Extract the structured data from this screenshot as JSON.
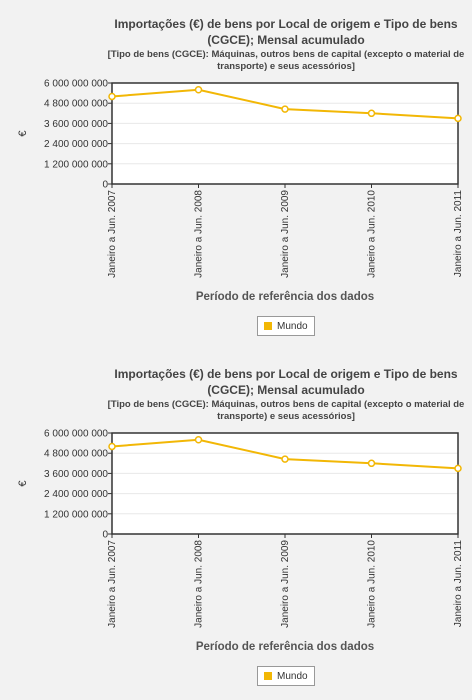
{
  "colors": {
    "series": "#f2b705",
    "plot_border": "#333333",
    "grid": "#e8e8e8"
  },
  "chart_data": [
    {
      "type": "line",
      "title": "Importações (€) de bens por Local de origem e Tipo de bens (CGCE); Mensal acumulado",
      "subtitle": "[Tipo de bens (CGCE): Máquinas, outros bens de capital (excepto o material de transporte) e seus acessórios]",
      "xlabel": "Período de referência dos dados",
      "ylabel": "€",
      "ylim": [
        0,
        6000000000
      ],
      "yticks": [
        0,
        1200000000,
        2400000000,
        3600000000,
        4800000000,
        6000000000
      ],
      "ytick_labels": [
        "0",
        "1 200 000 000",
        "2 400 000 000",
        "3 600 000 000",
        "4 800 000 000",
        "6 000 000 000"
      ],
      "categories": [
        "Janeiro a Jun. 2007",
        "Janeiro a Jun. 2008",
        "Janeiro a Jun. 2009",
        "Janeiro a Jun. 2010",
        "Janeiro a Jun. 2011"
      ],
      "series": [
        {
          "name": "Mundo",
          "values": [
            5200000000,
            5600000000,
            4450000000,
            4200000000,
            3900000000
          ]
        }
      ],
      "grid": true,
      "legend": "bottom-center"
    },
    {
      "type": "line",
      "title": "Importações (€) de bens por Local de origem e Tipo de bens (CGCE); Mensal acumulado",
      "subtitle": "[Tipo de bens (CGCE): Máquinas, outros bens de capital (excepto o material de transporte) e seus acessórios]",
      "xlabel": "Período de referência dos dados",
      "ylabel": "€",
      "ylim": [
        0,
        6000000000
      ],
      "yticks": [
        0,
        1200000000,
        2400000000,
        3600000000,
        4800000000,
        6000000000
      ],
      "ytick_labels": [
        "0",
        "1 200 000 000",
        "2 400 000 000",
        "3 600 000 000",
        "4 800 000 000",
        "6 000 000 000"
      ],
      "categories": [
        "Janeiro a Jun. 2007",
        "Janeiro a Jun. 2008",
        "Janeiro a Jun. 2009",
        "Janeiro a Jun. 2010",
        "Janeiro a Jun. 2011"
      ],
      "series": [
        {
          "name": "Mundo",
          "values": [
            5200000000,
            5600000000,
            4450000000,
            4200000000,
            3900000000
          ]
        }
      ],
      "grid": true,
      "legend": "bottom-center"
    }
  ]
}
